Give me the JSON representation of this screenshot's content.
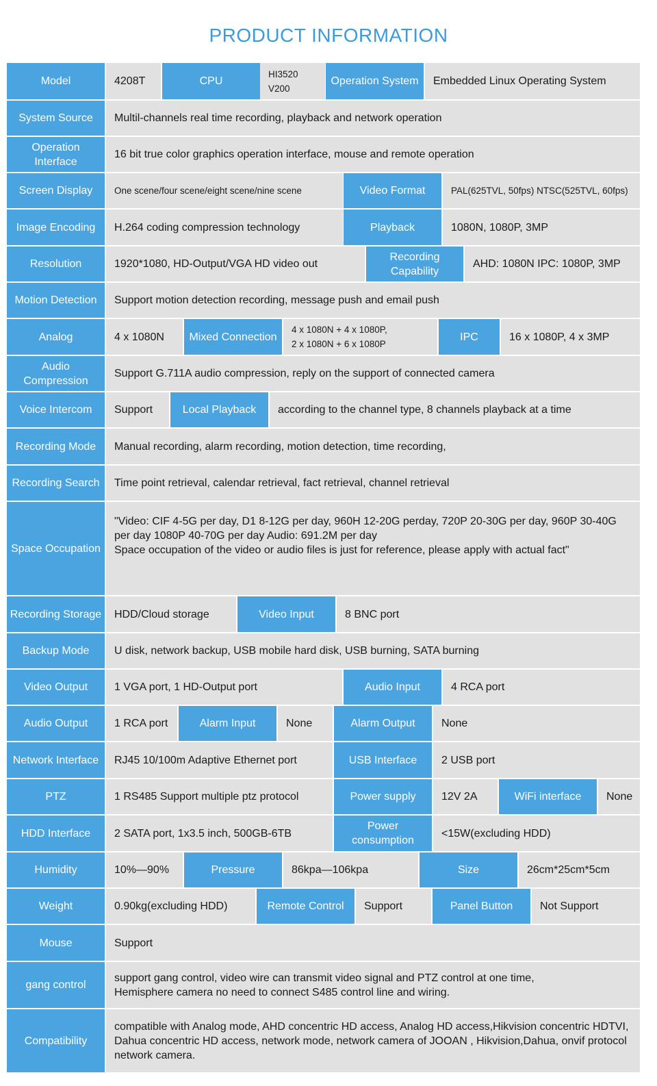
{
  "title": "PRODUCT INFORMATION",
  "colors": {
    "label_bg": "#4aa4df",
    "value_bg": "#e1e1e1",
    "title": "#3b9bdc"
  },
  "rows": [
    {
      "name": "model",
      "cells": [
        {
          "k": "label",
          "t": "Model"
        },
        {
          "k": "value",
          "t": "4208T"
        },
        {
          "k": "label",
          "t": "CPU"
        },
        {
          "k": "value",
          "t": "HI3520 V200"
        },
        {
          "k": "label",
          "t": "Operation System"
        },
        {
          "k": "value",
          "t": "Embedded Linux Operating System"
        }
      ]
    },
    {
      "name": "system-source",
      "cells": [
        {
          "k": "label",
          "t": "System Source"
        },
        {
          "k": "value",
          "t": "Multil-channels real time recording, playback and network operation"
        }
      ]
    },
    {
      "name": "operation-interface",
      "cells": [
        {
          "k": "label",
          "t": "Operation Interface"
        },
        {
          "k": "value",
          "t": "16 bit true color graphics operation interface, mouse and remote operation"
        }
      ]
    },
    {
      "name": "screen-display",
      "cells": [
        {
          "k": "label",
          "t": "Screen Display"
        },
        {
          "k": "value",
          "t": "One scene/four scene/eight scene/nine scene"
        },
        {
          "k": "label",
          "t": "Video Format"
        },
        {
          "k": "value",
          "t": "PAL(625TVL, 50fps) NTSC(525TVL, 60fps)"
        }
      ]
    },
    {
      "name": "image-encoding",
      "cells": [
        {
          "k": "label",
          "t": "Image Encoding"
        },
        {
          "k": "value",
          "t": "H.264 coding compression technology"
        },
        {
          "k": "label",
          "t": "Playback"
        },
        {
          "k": "value",
          "t": "1080N, 1080P,   3MP"
        }
      ]
    },
    {
      "name": "resolution",
      "cells": [
        {
          "k": "label",
          "t": "Resolution"
        },
        {
          "k": "value",
          "t": "1920*1080,  HD-Output/VGA HD video out"
        },
        {
          "k": "label",
          "t": "Recording Capability"
        },
        {
          "k": "value",
          "t": "AHD: 1080N IPC: 1080P, 3MP"
        }
      ]
    },
    {
      "name": "motion-detection",
      "cells": [
        {
          "k": "label",
          "t": "Motion Detection"
        },
        {
          "k": "value",
          "t": "Support motion detection recording, message push and email push"
        }
      ]
    },
    {
      "name": "analog",
      "cells": [
        {
          "k": "label",
          "t": "Analog"
        },
        {
          "k": "value",
          "t": "4 x 1080N"
        },
        {
          "k": "label",
          "t": "Mixed Connection"
        },
        {
          "k": "value",
          "t": "4 x 1080N + 4 x 1080P,\n2 x 1080N + 6 x 1080P"
        },
        {
          "k": "label",
          "t": "IPC"
        },
        {
          "k": "value",
          "t": "16 x 1080P, 4 x 3MP"
        }
      ]
    },
    {
      "name": "audio-compression",
      "cells": [
        {
          "k": "label",
          "t": "Audio Compression"
        },
        {
          "k": "value",
          "t": "Support G.711A audio compression, reply on the support of connected camera"
        }
      ]
    },
    {
      "name": "voice-intercom",
      "cells": [
        {
          "k": "label",
          "t": "Voice Intercom"
        },
        {
          "k": "value",
          "t": "Support"
        },
        {
          "k": "label",
          "t": "Local Playback"
        },
        {
          "k": "value",
          "t": "according to the channel type, 8 channels playback at a time"
        }
      ]
    },
    {
      "name": "recording-mode",
      "cells": [
        {
          "k": "label",
          "t": "Recording Mode"
        },
        {
          "k": "value",
          "t": "Manual recording, alarm recording, motion detection, time recording,"
        }
      ]
    },
    {
      "name": "recording-search",
      "cells": [
        {
          "k": "label",
          "t": "Recording Search"
        },
        {
          "k": "value",
          "t": "Time point retrieval, calendar retrieval, fact retrieval, channel retrieval"
        }
      ]
    },
    {
      "name": "space-occupation",
      "cells": [
        {
          "k": "label",
          "t": "Space Occupation"
        },
        {
          "k": "value",
          "t": "\"Video: CIF 4-5G per day, D1 8-12G per day, 960H 12-20G perday, 720P 20-30G per day, 960P 30-40G per day 1080P 40-70G per day Audio: 691.2M per day\nSpace occupation of the video or audio files is just for reference, please apply with actual fact\""
        }
      ]
    },
    {
      "name": "recording-storage",
      "cells": [
        {
          "k": "label",
          "t": "Recording Storage"
        },
        {
          "k": "value",
          "t": "HDD/Cloud storage"
        },
        {
          "k": "label",
          "t": "Video Input"
        },
        {
          "k": "value",
          "t": "8 BNC port"
        }
      ]
    },
    {
      "name": "backup-mode",
      "cells": [
        {
          "k": "label",
          "t": "Backup Mode"
        },
        {
          "k": "value",
          "t": "U disk, network backup, USB mobile hard disk, USB burning, SATA burning"
        }
      ]
    },
    {
      "name": "video-output",
      "cells": [
        {
          "k": "label",
          "t": "Video Output"
        },
        {
          "k": "value",
          "t": "1 VGA port, 1          HD-Output  port"
        },
        {
          "k": "label",
          "t": "Audio Input"
        },
        {
          "k": "value",
          "t": "4 RCA port"
        }
      ]
    },
    {
      "name": "audio-output",
      "cells": [
        {
          "k": "label",
          "t": "Audio Output"
        },
        {
          "k": "value",
          "t": "1 RCA port"
        },
        {
          "k": "label",
          "t": "Alarm Input"
        },
        {
          "k": "value",
          "t": "None"
        },
        {
          "k": "label",
          "t": "Alarm Output"
        },
        {
          "k": "value",
          "t": "None"
        }
      ]
    },
    {
      "name": "network-interface",
      "cells": [
        {
          "k": "label",
          "t": "Network Interface"
        },
        {
          "k": "value",
          "t": "RJ45 10/100m Adaptive Ethernet port"
        },
        {
          "k": "label",
          "t": "USB Interface"
        },
        {
          "k": "value",
          "t": "2 USB port"
        }
      ]
    },
    {
      "name": "ptz",
      "cells": [
        {
          "k": "label",
          "t": "PTZ"
        },
        {
          "k": "value",
          "t": "1 RS485 Support multiple ptz protocol"
        },
        {
          "k": "label",
          "t": "Power supply"
        },
        {
          "k": "value",
          "t": "12V 2A"
        },
        {
          "k": "label",
          "t": "WiFi interface"
        },
        {
          "k": "value",
          "t": "None"
        }
      ]
    },
    {
      "name": "hdd-interface",
      "cells": [
        {
          "k": "label",
          "t": "HDD Interface"
        },
        {
          "k": "value",
          "t": "2 SATA port, 1x3.5 inch, 500GB-6TB"
        },
        {
          "k": "label",
          "t": "Power consumption"
        },
        {
          "k": "value",
          "t": "<15W(excluding HDD)"
        }
      ]
    },
    {
      "name": "humidity",
      "cells": [
        {
          "k": "label",
          "t": "Humidity"
        },
        {
          "k": "value",
          "t": "10%—90%"
        },
        {
          "k": "label",
          "t": "Pressure"
        },
        {
          "k": "value",
          "t": "86kpa—106kpa"
        },
        {
          "k": "label",
          "t": "Size"
        },
        {
          "k": "value",
          "t": "26cm*25cm*5cm"
        }
      ]
    },
    {
      "name": "weight",
      "cells": [
        {
          "k": "label",
          "t": "Weight"
        },
        {
          "k": "value",
          "t": "0.90kg(excluding HDD)"
        },
        {
          "k": "label",
          "t": "Remote Control"
        },
        {
          "k": "value",
          "t": "Support"
        },
        {
          "k": "label",
          "t": "Panel Button"
        },
        {
          "k": "value",
          "t": "Not Support"
        }
      ]
    },
    {
      "name": "mouse",
      "cells": [
        {
          "k": "label",
          "t": "Mouse"
        },
        {
          "k": "value",
          "t": "Support"
        }
      ]
    },
    {
      "name": "gang-control",
      "cells": [
        {
          "k": "label",
          "t": "gang control"
        },
        {
          "k": "value",
          "t": "support gang control, video wire can transmit video signal and PTZ control at one time,\n Hemisphere camera no need to connect S485 control line and wiring."
        }
      ]
    },
    {
      "name": "compatibility",
      "cells": [
        {
          "k": "label",
          "t": "Compatibility"
        },
        {
          "k": "value",
          "t": " compatible with Analog mode,   AHD concentric HD access,   Analog HD access,Hikvision concentric HDTVI, Dahua concentric HD access, network mode,   network camera of JOOAN , Hikvision,Dahua, onvif protocol network camera."
        }
      ]
    }
  ]
}
